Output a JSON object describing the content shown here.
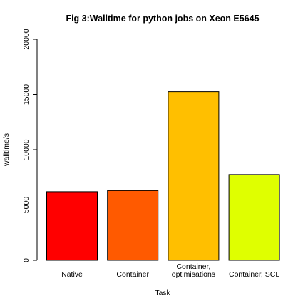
{
  "chart_data": {
    "type": "bar",
    "title": "Fig 3:Walltime for python jobs on Xeon E5645",
    "xlabel": "Task",
    "ylabel": "walltime/s",
    "ylim": [
      0,
      20000
    ],
    "yticks": [
      "0",
      "5000",
      "10000",
      "15000",
      "20000"
    ],
    "ytick_values": [
      0,
      5000,
      10000,
      15000,
      20000
    ],
    "grid": false,
    "categories": [
      [
        "Native"
      ],
      [
        "Container"
      ],
      [
        "Container,",
        "optimisations"
      ],
      [
        "Container, SCL"
      ]
    ],
    "values": [
      6200,
      6300,
      15250,
      7750
    ],
    "colors": [
      "#ff0000",
      "#ff5a00",
      "#ffbf00",
      "#dfff00"
    ]
  }
}
